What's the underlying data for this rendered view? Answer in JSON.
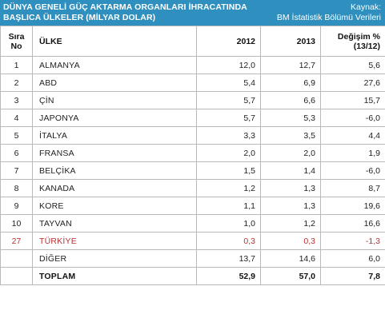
{
  "header": {
    "title_line1": "DÜNYA GENELİ GÜÇ AKTARMA ORGANLARI  İHRACATINDA",
    "title_line2": "BAŞLICA ÜLKELER (MİLYAR DOLAR)",
    "source_label": "Kaynak:",
    "source_name": "BM İstatistik Bölümü Verileri"
  },
  "columns": {
    "rank_line1": "Sıra",
    "rank_line2": "No",
    "country": "ÜLKE",
    "y2012": "2012",
    "y2013": "2013",
    "change_line1": "Değişim %",
    "change_line2": "(13/12)"
  },
  "rows": [
    {
      "rank": "1",
      "country": "ALMANYA",
      "v2012": "12,0",
      "v2013": "12,7",
      "change": "5,6"
    },
    {
      "rank": "2",
      "country": "ABD",
      "v2012": "5,4",
      "v2013": "6,9",
      "change": "27,6"
    },
    {
      "rank": "3",
      "country": "ÇİN",
      "v2012": "5,7",
      "v2013": "6,6",
      "change": "15,7"
    },
    {
      "rank": "4",
      "country": "JAPONYA",
      "v2012": "5,7",
      "v2013": "5,3",
      "change": "-6,0"
    },
    {
      "rank": "5",
      "country": "İTALYA",
      "v2012": "3,3",
      "v2013": "3,5",
      "change": "4,4"
    },
    {
      "rank": "6",
      "country": "FRANSA",
      "v2012": "2,0",
      "v2013": "2,0",
      "change": "1,9"
    },
    {
      "rank": "7",
      "country": "BELÇİKA",
      "v2012": "1,5",
      "v2013": "1,4",
      "change": "-6,0"
    },
    {
      "rank": "8",
      "country": "KANADA",
      "v2012": "1,2",
      "v2013": "1,3",
      "change": "8,7"
    },
    {
      "rank": "9",
      "country": "KORE",
      "v2012": "1,1",
      "v2013": "1,3",
      "change": "19,6"
    },
    {
      "rank": "10",
      "country": "TAYVAN",
      "v2012": "1,0",
      "v2013": "1,2",
      "change": "16,6"
    },
    {
      "rank": "27",
      "country": "TÜRKİYE",
      "v2012": "0,3",
      "v2013": "0,3",
      "change": "-1,3"
    },
    {
      "rank": "",
      "country": "DİĞER",
      "v2012": "13,7",
      "v2013": "14,6",
      "change": "6,0"
    },
    {
      "rank": "",
      "country": "TOPLAM",
      "v2012": "52,9",
      "v2013": "57,0",
      "change": "7,8"
    }
  ],
  "colors": {
    "banner": "#2f8fbf",
    "highlight_row_text": "#b83232",
    "grid": "#b9b9b9"
  }
}
